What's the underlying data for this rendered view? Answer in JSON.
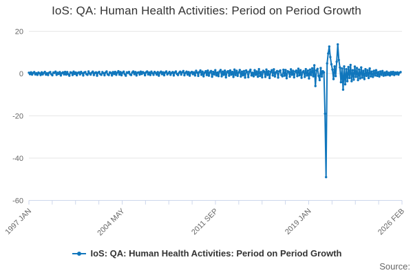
{
  "title": "IoS: QA: Human Health Activities: Period on Period Growth",
  "legend": {
    "label": "IoS: QA: Human Health Activities: Period on Period Growth",
    "marker_icon": "line-with-dot-icon"
  },
  "source_label": "Source:",
  "colors": {
    "series": "#1076bc",
    "grid": "#e6e6e6",
    "axis": "#ccd6eb",
    "tick_label": "#666666",
    "title_text": "#333333"
  },
  "chart_data": {
    "type": "line",
    "title": "IoS: QA: Human Health Activities: Period on Period Growth",
    "xlabel": "",
    "ylabel": "",
    "x_start": "1997-01",
    "x_end": "2026-02",
    "frequency": "monthly",
    "x_tick_labels": [
      "1997 JAN",
      "2004 MAY",
      "2011 SEP",
      "2019 JAN",
      "2026 FEB"
    ],
    "x_total_ticks": 17,
    "x_major_every": 4,
    "y_ticks": [
      20,
      0,
      -20,
      -40,
      -60
    ],
    "ylim": [
      -60,
      20
    ],
    "grid": "horizontal",
    "legend_position": "bottom-center",
    "marker": "dot",
    "notable_points": {
      "2020-03": -19,
      "2020-04": -49,
      "2020-07": 12.8,
      "2021-03": 13.8
    },
    "series": [
      {
        "name": "IoS: QA: Human Health Activities: Period on Period Growth",
        "color": "#1076bc",
        "values": [
          0.4,
          -0.3,
          0.6,
          -0.5,
          0.3,
          0.7,
          -0.4,
          0.2,
          -0.6,
          0.5,
          0.1,
          -0.7,
          0.6,
          -0.4,
          0.3,
          0.8,
          -0.5,
          0.2,
          -0.7,
          0.4,
          0.7,
          -0.3,
          -0.8,
          0.5,
          0.3,
          0.9,
          -0.6,
          0.4,
          -0.2,
          0.7,
          -0.9,
          0.2,
          0.6,
          -0.4,
          0.8,
          -0.5,
          0.7,
          -0.3,
          -1.0,
          0.6,
          0.4,
          -0.7,
          0.9,
          -0.2,
          0.5,
          -0.8,
          0.3,
          0.6,
          -0.4,
          0.8,
          0.2,
          -0.9,
          0.5,
          0.7,
          -0.3,
          -0.6,
          1.0,
          0.1,
          -0.5,
          0.4,
          0.9,
          -0.7,
          0.3,
          0.6,
          -1.0,
          0.4,
          0.8,
          -0.3,
          -0.6,
          0.7,
          0.2,
          -0.8,
          0.5,
          1.0,
          -0.4,
          -0.7,
          0.6,
          0.3,
          -0.9,
          0.7,
          -0.2,
          0.8,
          -0.6,
          0.4,
          1.1,
          -0.5,
          0.7,
          -0.8,
          0.4,
          0.9,
          -0.3,
          -1.0,
          0.6,
          0.3,
          0.8,
          -0.4,
          -0.7,
          0.5,
          1.0,
          -0.3,
          0.7,
          -0.9,
          0.4,
          0.6,
          -0.5,
          0.9,
          -0.2,
          0.7,
          0.3,
          -0.8,
          0.6,
          1.0,
          -0.4,
          0.5,
          -0.7,
          0.9,
          0.2,
          -0.6,
          0.8,
          0.3,
          -0.5,
          0.7,
          -1.0,
          0.4,
          0.9,
          -0.3,
          0.6,
          -0.8,
          0.5,
          1.0,
          -0.4,
          0.2,
          0.8,
          -0.6,
          0.3,
          0.7,
          -0.9,
          0.5,
          1.0,
          -0.2,
          -0.7,
          0.4,
          0.9,
          -0.5,
          0.6,
          1.2,
          -0.8,
          0.3,
          0.9,
          -0.5,
          0.7,
          -1.0,
          0.4,
          0.8,
          -0.3,
          0.6,
          -0.9,
          1.3,
          0.5,
          -1.1,
          0.7,
          1.5,
          -0.6,
          0.9,
          -1.3,
          0.4,
          1.1,
          -0.7,
          1.4,
          -1.0,
          0.6,
          1.2,
          -1.5,
          0.8,
          -0.4,
          1.6,
          -0.9,
          0.5,
          -1.2,
          1.0,
          1.7,
          -1.3,
          0.9,
          -0.6,
          1.4,
          -1.8,
          0.7,
          1.1,
          -1.0,
          1.5,
          -0.5,
          0.8,
          -1.6,
          1.9,
          -0.7,
          1.3,
          -1.1,
          0.6,
          1.7,
          -1.4,
          0.9,
          -0.8,
          1.2,
          -1.9,
          1.5,
          0.7,
          -1.7,
          1.0,
          1.8,
          -0.9,
          0.4,
          -1.3,
          1.6,
          -0.6,
          1.0,
          -1.5,
          2.1,
          -1.1,
          0.7,
          -1.8,
          1.3,
          0.9,
          -1.6,
          1.9,
          -0.7,
          1.1,
          -2.1,
          0.8,
          1.6,
          -0.9,
          2.0,
          -1.4,
          0.6,
          1.2,
          -1.9,
          1.0,
          1.5,
          -0.7,
          -1.3,
          1.8,
          -1.0,
          1.7,
          -2.2,
          1.1,
          0.8,
          -1.5,
          2.0,
          -0.6,
          1.3,
          -1.8,
          0.9,
          1.4,
          -1.2,
          2.3,
          -0.8,
          1.6,
          -2.0,
          0.7,
          1.2,
          -1.6,
          2.1,
          -0.9,
          1.4,
          -2.3,
          1.9,
          -0.7,
          2.5,
          -1.3,
          3.9,
          -5.9,
          1.5,
          2.2,
          -1.1,
          -3.1,
          2.6,
          -1.4,
          1.1,
          0.6,
          -19.0,
          -49.0,
          4.8,
          9.5,
          12.8,
          7.8,
          4.4,
          1.9,
          -2.6,
          3.4,
          -1.2,
          5.6,
          13.8,
          6.4,
          2.9,
          -4.1,
          2.4,
          -7.6,
          3.4,
          -5.1,
          2.1,
          -3.6,
          3.1,
          -2.1,
          4.1,
          -3.6,
          1.6,
          -2.9,
          3.3,
          -1.6,
          2.6,
          -3.1,
          1.9,
          -2.3,
          2.9,
          -1.9,
          1.3,
          -2.6,
          2.1,
          -1.1,
          1.6,
          -2.1,
          2.4,
          -1.3,
          0.9,
          -1.6,
          1.3,
          -0.9,
          1.6,
          -1.1,
          0.7,
          -1.4,
          1.0,
          -0.6,
          1.2,
          -1.0,
          0.5,
          -0.8,
          0.9,
          -0.6,
          0.4,
          -0.9,
          0.7,
          -0.4,
          0.8,
          -0.7,
          0.5,
          -0.3,
          0.6,
          -0.5,
          0.4,
          0.7
        ]
      }
    ]
  }
}
